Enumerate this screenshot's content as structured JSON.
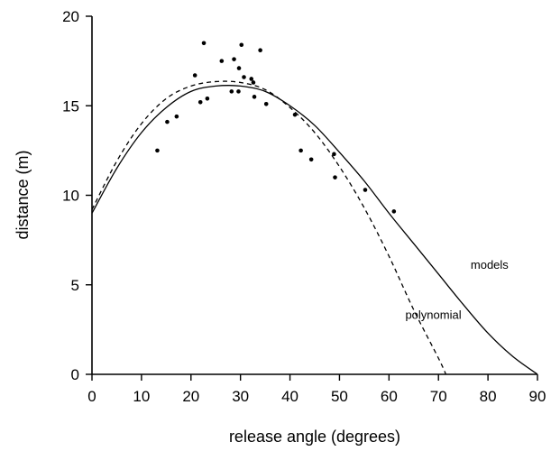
{
  "chart_data": {
    "type": "scatter",
    "title": "",
    "xlabel": "release angle (degrees)",
    "ylabel": "distance (m)",
    "xlim": [
      0,
      90
    ],
    "ylim": [
      0,
      20
    ],
    "x_ticks": [
      0,
      10,
      20,
      30,
      40,
      50,
      60,
      70,
      80,
      90
    ],
    "y_ticks": [
      0,
      5,
      10,
      15,
      20
    ],
    "grid": false,
    "legend": "none",
    "points": [
      {
        "x": 13.2,
        "y": 12.5
      },
      {
        "x": 15.2,
        "y": 14.1
      },
      {
        "x": 17.1,
        "y": 14.4
      },
      {
        "x": 20.8,
        "y": 16.7
      },
      {
        "x": 21.9,
        "y": 15.2
      },
      {
        "x": 22.6,
        "y": 18.5
      },
      {
        "x": 23.3,
        "y": 15.4
      },
      {
        "x": 26.2,
        "y": 17.5
      },
      {
        "x": 28.2,
        "y": 15.8
      },
      {
        "x": 28.7,
        "y": 17.6
      },
      {
        "x": 29.6,
        "y": 15.8
      },
      {
        "x": 29.7,
        "y": 17.1
      },
      {
        "x": 30.2,
        "y": 18.4
      },
      {
        "x": 30.7,
        "y": 16.6
      },
      {
        "x": 32.2,
        "y": 16.5
      },
      {
        "x": 32.6,
        "y": 16.3
      },
      {
        "x": 32.8,
        "y": 15.5
      },
      {
        "x": 34.0,
        "y": 18.1
      },
      {
        "x": 35.2,
        "y": 15.1
      },
      {
        "x": 41.0,
        "y": 14.5
      },
      {
        "x": 42.2,
        "y": 12.5
      },
      {
        "x": 44.3,
        "y": 12.0
      },
      {
        "x": 48.9,
        "y": 12.3
      },
      {
        "x": 49.1,
        "y": 11.0
      },
      {
        "x": 55.2,
        "y": 10.3
      },
      {
        "x": 61.0,
        "y": 9.1
      }
    ],
    "series": [
      {
        "style": "solid",
        "x": [
          0,
          5,
          10,
          15,
          20,
          25,
          30,
          35,
          40,
          45,
          50,
          55,
          60,
          65,
          70,
          75,
          80,
          85,
          90
        ],
        "y": [
          9.0,
          11.5,
          13.5,
          14.9,
          15.8,
          16.1,
          16.1,
          15.8,
          15.0,
          13.9,
          12.4,
          10.8,
          9.0,
          7.3,
          5.6,
          3.9,
          2.3,
          1.0,
          0.0
        ]
      },
      {
        "style": "dashed",
        "x": [
          0,
          5,
          10,
          15,
          20,
          25,
          30,
          35,
          40,
          45,
          50,
          55,
          60,
          65,
          70,
          71.5
        ],
        "y": [
          9.2,
          11.9,
          14.0,
          15.4,
          16.1,
          16.35,
          16.3,
          15.9,
          14.9,
          13.5,
          11.6,
          9.3,
          6.6,
          3.6,
          0.9,
          0.0
        ]
      }
    ],
    "annotations": [
      {
        "text": "models",
        "x": 76.5,
        "y": 5.9
      },
      {
        "text": "polynomial",
        "x": 63.3,
        "y": 3.1
      }
    ]
  }
}
